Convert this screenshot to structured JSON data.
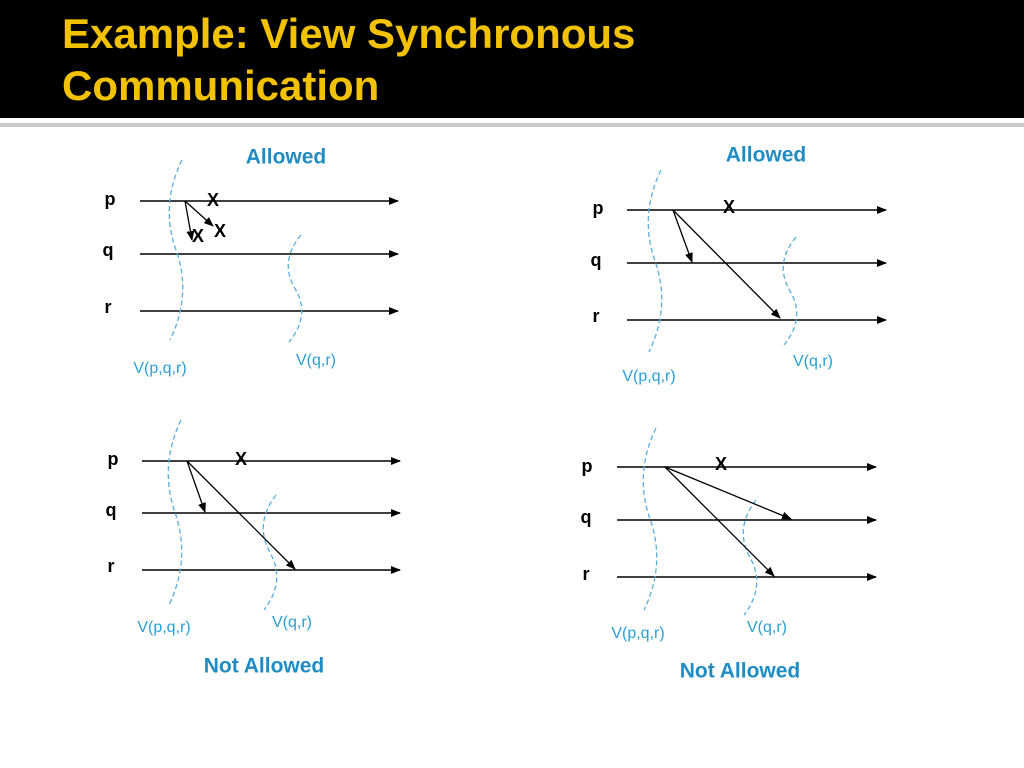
{
  "title": "Example: View Synchronous Communication",
  "panels": [
    {
      "caption": "Allowed",
      "processes": [
        "p",
        "q",
        "r"
      ],
      "crash_marks": [
        "X",
        "X",
        "X"
      ],
      "views": [
        "V(p,q,r)",
        "V(q,r)"
      ]
    },
    {
      "caption": "Allowed",
      "processes": [
        "p",
        "q",
        "r"
      ],
      "crash_marks": [
        "X"
      ],
      "views": [
        "V(p,q,r)",
        "V(q,r)"
      ]
    },
    {
      "caption": "Not Allowed",
      "processes": [
        "p",
        "q",
        "r"
      ],
      "crash_marks": [
        "X"
      ],
      "views": [
        "V(p,q,r)",
        "V(q,r)"
      ]
    },
    {
      "caption": "Not Allowed",
      "processes": [
        "p",
        "q",
        "r"
      ],
      "crash_marks": [
        "X"
      ],
      "views": [
        "V(p,q,r)",
        "V(q,r)"
      ]
    }
  ]
}
